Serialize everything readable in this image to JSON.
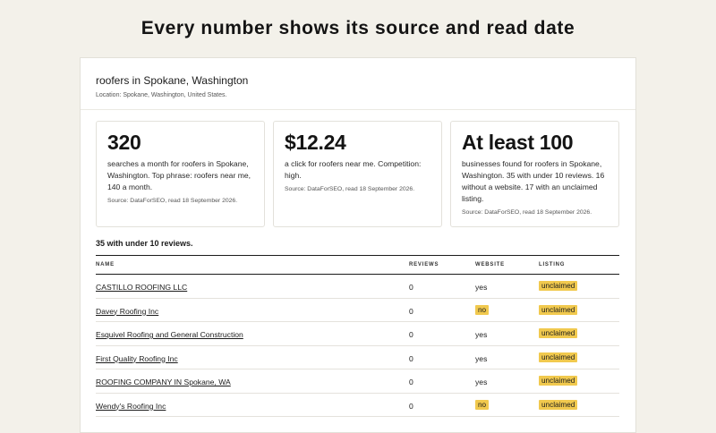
{
  "page": {
    "headline": "Every number shows its source and read date"
  },
  "report": {
    "title": "roofers in Spokane, Washington",
    "location": "Location: Spokane, Washington, United States."
  },
  "stats": [
    {
      "value": "320",
      "desc": "searches a month for roofers in Spokane, Washington. Top phrase: roofers near me, 140 a month.",
      "source": "Source: DataForSEO, read 18 September 2026."
    },
    {
      "value": "$12.24",
      "desc": "a click for roofers near me. Competition: high.",
      "source": "Source: DataForSEO, read 18 September 2026."
    },
    {
      "value": "At least 100",
      "desc": "businesses found for roofers in Spokane, Washington. 35 with under 10 reviews. 16 without a website. 17 with an unclaimed listing.",
      "source": "Source: DataForSEO, read 18 September 2026."
    }
  ],
  "table": {
    "caption": "35 with under 10 reviews.",
    "headers": {
      "name": "NAME",
      "reviews": "REVIEWS",
      "website": "WEBSITE",
      "listing": "LISTING"
    },
    "rows": [
      {
        "name": "CASTILLO ROOFING LLC",
        "reviews": "0",
        "website": "yes",
        "website_flag": false,
        "listing": "unclaimed"
      },
      {
        "name": "Davey Roofing Inc",
        "reviews": "0",
        "website": "no",
        "website_flag": true,
        "listing": "unclaimed"
      },
      {
        "name": "Esquivel Roofing and General Construction",
        "reviews": "0",
        "website": "yes",
        "website_flag": false,
        "listing": "unclaimed"
      },
      {
        "name": "First Quality Roofing Inc",
        "reviews": "0",
        "website": "yes",
        "website_flag": false,
        "listing": "unclaimed"
      },
      {
        "name": "ROOFING COMPANY IN Spokane, WA",
        "reviews": "0",
        "website": "yes",
        "website_flag": false,
        "listing": "unclaimed"
      },
      {
        "name": "Wendy's Roofing Inc",
        "reviews": "0",
        "website": "no",
        "website_flag": true,
        "listing": "unclaimed"
      }
    ]
  },
  "colors": {
    "highlight": "#f1c94e",
    "background": "#f3f1ea"
  }
}
